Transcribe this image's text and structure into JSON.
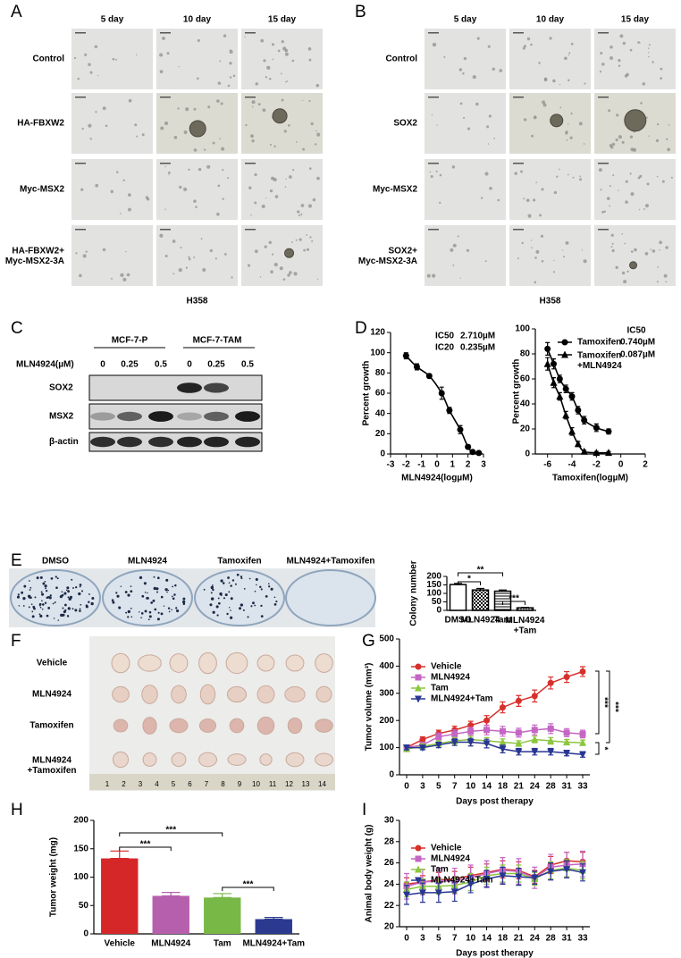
{
  "figure": {
    "panel_labels": [
      "A",
      "B",
      "C",
      "D",
      "E",
      "F",
      "G",
      "H",
      "I"
    ],
    "A": {
      "columns": [
        "5 day",
        "10 day",
        "15 day"
      ],
      "rows": [
        "Control",
        "HA-FBXW2",
        "Myc-MSX2",
        [
          "HA-FBXW2+",
          "Myc-MSX2-3A"
        ]
      ],
      "cell_line": "H358"
    },
    "B": {
      "columns": [
        "5 day",
        "10 day",
        "15 day"
      ],
      "rows": [
        "Control",
        "SOX2",
        "Myc-MSX2",
        [
          "SOX2+",
          "Myc-MSX2-3A"
        ]
      ],
      "cell_line": "H358"
    },
    "C": {
      "groups": [
        "MCF-7-P",
        "MCF-7-TAM"
      ],
      "dose_label": "MLN4924(µM)",
      "doses": [
        "0",
        "0.25",
        "0.5",
        "0",
        "0.25",
        "0.5"
      ],
      "proteins": [
        "SOX2",
        "MSX2",
        "β-actin"
      ]
    },
    "E": {
      "treatments": [
        "DMSO",
        "MLN4924",
        "Tamoxifen",
        "MLN4924+Tamoxifen"
      ]
    },
    "F": {
      "groups": [
        "Vehicle",
        "MLN4924",
        "Tamoxifen",
        [
          "MLN4924",
          "+Tamoxifen"
        ]
      ],
      "ruler": [
        "1",
        "2",
        "3",
        "4",
        "5",
        "6",
        "7",
        "8",
        "9",
        "10",
        "11",
        "12",
        "13",
        "14"
      ]
    }
  },
  "chart_data": [
    {
      "type": "scatter",
      "x_label": "MLN4924(logµM)",
      "y_label": "Percent growth",
      "xlim": [
        -3,
        3
      ],
      "xticks": [
        -3,
        -2,
        -1,
        0,
        1,
        2,
        3
      ],
      "ylim": [
        0,
        120
      ],
      "yticks": [
        0,
        20,
        40,
        60,
        80,
        100,
        120
      ],
      "annotations": [
        [
          "IC50",
          "2.710µM"
        ],
        [
          "IC20",
          "0.235µM"
        ]
      ],
      "series": [
        {
          "color": "#000000",
          "marker": "circle",
          "x": [
            -2,
            -1.3,
            -0.5,
            0.3,
            0.8,
            1.5,
            2,
            2.3,
            2.7
          ],
          "values": [
            97,
            86,
            77,
            60,
            43,
            24,
            7,
            2,
            1
          ],
          "errors": [
            3,
            3,
            2,
            6,
            3,
            4,
            2,
            1,
            1
          ]
        }
      ]
    },
    {
      "type": "scatter",
      "x_label": "Tamoxifen(logµM)",
      "y_label": "Percent growth",
      "xlim": [
        -7,
        2
      ],
      "xticks": [
        -6,
        -4,
        -2,
        0,
        2
      ],
      "ylim": [
        0,
        100
      ],
      "yticks": [
        0,
        20,
        40,
        60,
        80,
        100
      ],
      "legend_title": "IC50",
      "series": [
        {
          "name": "Tamoxifen",
          "ic50": "0.740µM",
          "color": "#000000",
          "marker": "circle",
          "x": [
            -6,
            -5.5,
            -5,
            -4.5,
            -4,
            -3.5,
            -3,
            -2,
            -1
          ],
          "values": [
            84,
            72,
            60,
            52,
            46,
            35,
            27,
            21,
            18
          ],
          "errors": [
            5,
            4,
            3,
            3,
            3,
            3,
            3,
            3,
            2
          ]
        },
        {
          "name": [
            "Tamoxifen",
            "+MLN4924"
          ],
          "ic50": "0.087µM",
          "color": "#000000",
          "marker": "triangle-up",
          "x": [
            -6,
            -5.5,
            -5,
            -4.5,
            -4,
            -3.5,
            -3,
            -2,
            -1
          ],
          "values": [
            72,
            57,
            46,
            31,
            18,
            8,
            2,
            1,
            1
          ],
          "errors": [
            5,
            4,
            3,
            3,
            3,
            2,
            1,
            1,
            1
          ]
        }
      ]
    },
    {
      "type": "bar",
      "y_label": "Colony number",
      "categories": [
        "DMSO",
        "MLN4924",
        "Tam",
        [
          "MLN4924",
          "+Tam"
        ]
      ],
      "values": [
        152,
        120,
        113,
        15
      ],
      "errors": [
        7,
        9,
        7,
        2
      ],
      "patterns": [
        "none",
        "checker",
        "hlines",
        "vlines"
      ],
      "ylim": [
        0,
        200
      ],
      "yticks": [
        0,
        50,
        100,
        150,
        200
      ],
      "significance": [
        "*",
        "**",
        "***"
      ]
    },
    {
      "type": "line",
      "y_label": "Tumor volume (mm³)",
      "x_label": "Days post therapy",
      "categories": [
        0,
        3,
        5,
        7,
        10,
        14,
        18,
        21,
        24,
        28,
        31,
        33
      ],
      "ylim": [
        0,
        500
      ],
      "yticks": [
        0,
        100,
        200,
        300,
        400,
        500
      ],
      "series": [
        {
          "name": "Vehicle",
          "color": "#d7302c",
          "marker": "circle",
          "values": [
            100,
            130,
            152,
            165,
            182,
            200,
            248,
            272,
            290,
            338,
            360,
            380
          ],
          "errors": [
            8,
            10,
            12,
            14,
            15,
            18,
            20,
            20,
            22,
            22,
            20,
            18
          ]
        },
        {
          "name": "MLN4924",
          "color": "#c466c4",
          "marker": "square",
          "values": [
            100,
            110,
            140,
            150,
            160,
            165,
            160,
            155,
            165,
            170,
            155,
            150
          ],
          "errors": [
            8,
            10,
            14,
            15,
            15,
            18,
            18,
            16,
            18,
            18,
            15,
            14
          ]
        },
        {
          "name": "Tam",
          "color": "#8cc63f",
          "marker": "triangle-up",
          "values": [
            95,
            105,
            115,
            125,
            130,
            125,
            120,
            115,
            130,
            125,
            120,
            118
          ],
          "errors": [
            8,
            8,
            10,
            12,
            12,
            12,
            12,
            10,
            12,
            12,
            10,
            10
          ]
        },
        {
          "name": "MLN4924+Tam",
          "color": "#283593",
          "marker": "triangle-down",
          "values": [
            100,
            100,
            110,
            120,
            120,
            115,
            95,
            85,
            85,
            85,
            80,
            75
          ],
          "errors": [
            8,
            8,
            10,
            12,
            14,
            16,
            14,
            12,
            12,
            12,
            10,
            10
          ]
        }
      ],
      "significance": [
        "***",
        "***",
        "*"
      ]
    },
    {
      "type": "bar",
      "y_label": "Tumor weight (mg)",
      "categories": [
        "Vehicle",
        "MLN4924",
        "Tam",
        "MLN4924+Tam"
      ],
      "values": [
        133,
        67,
        64,
        26
      ],
      "errors": [
        13,
        6,
        7,
        3
      ],
      "colors": [
        "#d62728",
        "#b660ad",
        "#78b846",
        "#2b3a8f"
      ],
      "ylim": [
        0,
        200
      ],
      "yticks": [
        0,
        50,
        100,
        150,
        200
      ],
      "significance": [
        "***",
        "***",
        "***"
      ]
    },
    {
      "type": "line",
      "y_label": "Animal body weight (g)",
      "x_label": "Days post therapy",
      "categories": [
        0,
        3,
        5,
        7,
        10,
        14,
        18,
        21,
        24,
        28,
        31,
        33
      ],
      "ylim": [
        20,
        30
      ],
      "yticks": [
        20,
        22,
        24,
        26,
        28,
        30
      ],
      "series": [
        {
          "name": "Vehicle",
          "color": "#d7302c",
          "marker": "circle",
          "values": [
            24,
            24.2,
            24.4,
            24.5,
            24.8,
            25.1,
            25.4,
            25.3,
            24.7,
            25.8,
            26.2,
            26.1
          ],
          "errors": [
            0.6,
            0.6,
            0.7,
            0.7,
            0.8,
            0.8,
            0.8,
            0.8,
            0.6,
            0.8,
            0.8,
            0.9
          ]
        },
        {
          "name": "MLN4924",
          "color": "#c466c4",
          "marker": "square",
          "values": [
            23.8,
            24.2,
            24.3,
            24.3,
            24.6,
            25,
            25.3,
            25.2,
            24.6,
            25.6,
            25.8,
            25.9
          ],
          "errors": [
            1.2,
            1.2,
            1.2,
            1.2,
            1.2,
            1.2,
            1.2,
            1.2,
            1,
            1.2,
            1.2,
            1.2
          ]
        },
        {
          "name": "Tam",
          "color": "#8cc63f",
          "marker": "triangle-up",
          "values": [
            23.5,
            23.8,
            23.8,
            23.9,
            24.2,
            24.8,
            25,
            25,
            24.5,
            25.3,
            25.5,
            25.3
          ],
          "errors": [
            0.7,
            0.7,
            0.7,
            0.7,
            0.8,
            0.8,
            0.8,
            0.8,
            0.6,
            0.8,
            0.8,
            0.8
          ]
        },
        {
          "name": "MLN4924+Tam",
          "color": "#283593",
          "marker": "triangle-down",
          "values": [
            23,
            23.2,
            23.2,
            23.3,
            24,
            24.5,
            24.8,
            24.7,
            24.6,
            25.2,
            25.4,
            25.1
          ],
          "errors": [
            0.9,
            0.9,
            0.9,
            0.9,
            0.8,
            0.8,
            0.8,
            0.8,
            0.6,
            0.8,
            0.8,
            0.8
          ]
        }
      ]
    }
  ]
}
